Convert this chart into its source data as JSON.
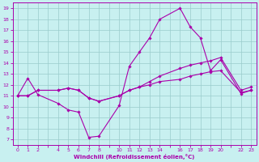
{
  "xlabel": "Windchill (Refroidissement éolien,°C)",
  "bg_color": "#c8f0f0",
  "grid_color": "#99cccc",
  "line_color": "#aa00aa",
  "xlim": [
    -0.5,
    23.5
  ],
  "ylim": [
    6.5,
    19.5
  ],
  "yticks": [
    7,
    8,
    9,
    10,
    11,
    12,
    13,
    14,
    15,
    16,
    17,
    18,
    19
  ],
  "xtick_positions": [
    0,
    1,
    2,
    3,
    4,
    5,
    6,
    7,
    8,
    9,
    10,
    11,
    12,
    13,
    14,
    15,
    16,
    17,
    18,
    19,
    20,
    21,
    22,
    23
  ],
  "xtick_labels": [
    "0",
    "1",
    "2",
    "",
    "4",
    "5",
    "6",
    "7",
    "8",
    "",
    "10",
    "11",
    "12",
    "13",
    "14",
    "",
    "16",
    "17",
    "18",
    "19",
    "20",
    "",
    "22",
    "23"
  ],
  "series": [
    {
      "x": [
        0,
        1,
        2,
        4,
        5,
        6,
        7,
        8,
        10,
        11,
        12,
        13,
        14,
        16,
        17,
        18,
        19,
        20,
        22,
        23
      ],
      "y": [
        11.0,
        12.6,
        11.1,
        10.3,
        9.7,
        9.5,
        7.2,
        7.3,
        10.1,
        13.7,
        15.0,
        16.3,
        18.0,
        19.0,
        17.3,
        16.3,
        13.3,
        14.3,
        11.2,
        11.5
      ]
    },
    {
      "x": [
        0,
        1,
        2,
        4,
        5,
        6,
        7,
        8,
        10,
        11,
        12,
        13,
        14,
        16,
        17,
        18,
        19,
        20,
        22,
        23
      ],
      "y": [
        11.0,
        11.0,
        11.5,
        11.5,
        11.7,
        11.5,
        10.8,
        10.5,
        11.0,
        11.5,
        11.8,
        12.0,
        12.3,
        12.5,
        12.8,
        13.0,
        13.2,
        13.3,
        11.3,
        11.5
      ]
    },
    {
      "x": [
        0,
        1,
        2,
        4,
        5,
        6,
        7,
        8,
        10,
        11,
        12,
        13,
        14,
        16,
        17,
        18,
        19,
        20,
        22,
        23
      ],
      "y": [
        11.0,
        11.0,
        11.5,
        11.5,
        11.7,
        11.5,
        10.8,
        10.5,
        11.0,
        11.5,
        11.8,
        12.3,
        12.8,
        13.5,
        13.8,
        14.0,
        14.2,
        14.5,
        11.5,
        11.8
      ]
    }
  ]
}
